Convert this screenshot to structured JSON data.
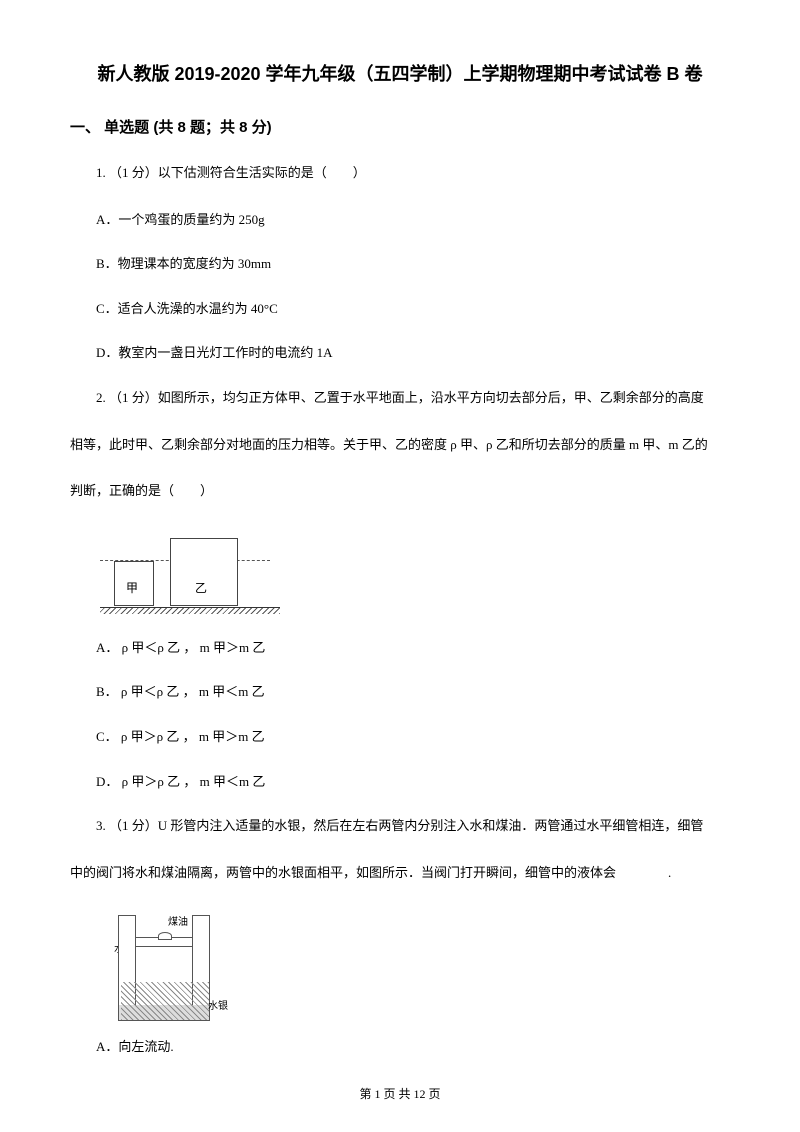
{
  "title": "新人教版 2019-2020 学年九年级（五四学制）上学期物理期中考试试卷 B 卷",
  "section_header": "一、 单选题 (共 8 题；共 8 分)",
  "q1": {
    "stem": "1.  （1 分）以下估测符合生活实际的是（　　）",
    "a": "A．一个鸡蛋的质量约为 250g",
    "b": "B．物理课本的宽度约为 30mm",
    "c": "C．适合人洗澡的水温约为 40°C",
    "d": "D．教室内一盏日光灯工作时的电流约 1A"
  },
  "q2": {
    "stem_line1": "2.   （1 分）如图所示，均匀正方体甲、乙置于水平地面上，沿水平方向切去部分后，甲、乙剩余部分的高度",
    "stem_line2": "相等，此时甲、乙剩余部分对地面的压力相等。关于甲、乙的密度 ρ 甲、ρ 乙和所切去部分的质量 m 甲、m 乙的",
    "stem_line3": "判断，正确的是（　　）",
    "block1_label": "甲",
    "block2_label": "乙",
    "a": "A． ρ 甲＜ρ 乙 ， m 甲＞m 乙",
    "b": "B． ρ 甲＜ρ 乙 ， m 甲＜m 乙",
    "c": "C． ρ 甲＞ρ 乙 ， m 甲＞m 乙",
    "d": "D． ρ 甲＞ρ 乙 ， m 甲＜m 乙"
  },
  "q3": {
    "stem_line1": "3.   （1 分）U 形管内注入适量的水银，然后在左右两管内分别注入水和煤油．两管通过水平细管相连，细管",
    "stem_line2": "中的阀门将水和煤油隔离，两管中的水银面相平，如图所示．当阀门打开瞬间，细管中的液体会　　　　.",
    "label_meiyou": "煤油",
    "label_shui": "水",
    "label_shuiyin": "水银",
    "a": "A．向左流动."
  },
  "footer": "第 1 页 共 12 页"
}
